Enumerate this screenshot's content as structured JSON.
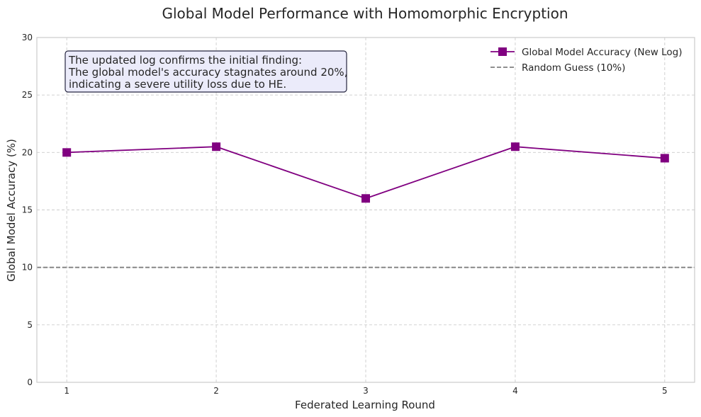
{
  "chart_data": {
    "type": "line",
    "title": "Global Model Performance with Homomorphic Encryption",
    "xlabel": "Federated Learning Round",
    "ylabel": "Global Model Accuracy (%)",
    "x": [
      1,
      2,
      3,
      4,
      5
    ],
    "xticks": [
      "1",
      "2",
      "3",
      "4",
      "5"
    ],
    "xlim": [
      0.8,
      5.2
    ],
    "ylim": [
      0,
      30
    ],
    "yticks": [
      "0",
      "5",
      "10",
      "15",
      "20",
      "25",
      "30"
    ],
    "grid": true,
    "legend_position": "top-right",
    "series": [
      {
        "name": "Global Model Accuracy (New Log)",
        "values": [
          20.0,
          20.5,
          16.0,
          20.5,
          19.5
        ],
        "color": "#800080",
        "marker": "square"
      }
    ],
    "reference_lines": [
      {
        "name": "Random Guess (10%)",
        "y": 10,
        "color": "#808080",
        "style": "dashed"
      }
    ],
    "annotation": {
      "lines": [
        "The updated log confirms the initial finding:",
        "The global model's accuracy stagnates around 20%,",
        "indicating a severe utility loss due to HE."
      ],
      "background": "#ebebfa",
      "border": "#262640"
    }
  }
}
